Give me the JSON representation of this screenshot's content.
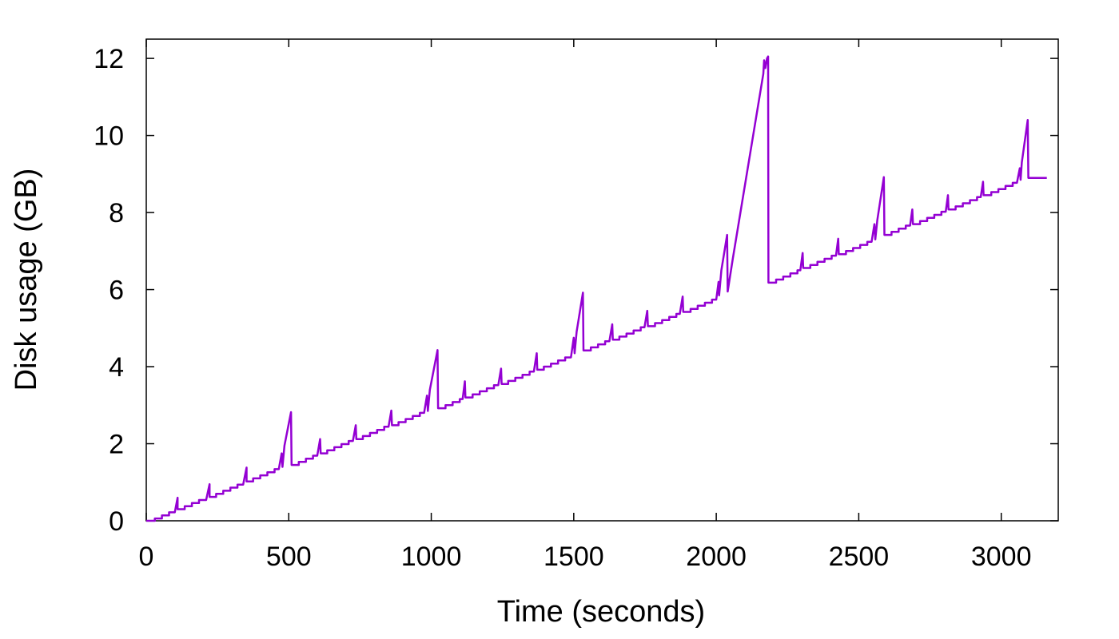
{
  "chart_data": {
    "type": "line",
    "title": "",
    "xlabel": "Time (seconds)",
    "ylabel": "Disk usage (GB)",
    "xlim": [
      0,
      3200
    ],
    "ylim": [
      0,
      12.5
    ],
    "xticks": [
      0,
      500,
      1000,
      1500,
      2000,
      2500,
      3000
    ],
    "yticks": [
      0,
      2,
      4,
      6,
      8,
      10,
      12
    ],
    "xtick_labels": [
      "0",
      "500",
      "1000",
      "1500",
      "2000",
      "2500",
      "3000"
    ],
    "ytick_labels": [
      "0",
      "2",
      "4",
      "6",
      "8",
      "10",
      "12"
    ],
    "grid": false,
    "legend": "none",
    "series": [
      {
        "color": "#9400d3",
        "points": [
          [
            0,
            0.0
          ],
          [
            30,
            0.0
          ],
          [
            30,
            0.06
          ],
          [
            55,
            0.06
          ],
          [
            55,
            0.14
          ],
          [
            80,
            0.14
          ],
          [
            80,
            0.22
          ],
          [
            100,
            0.22
          ],
          [
            110,
            0.6
          ],
          [
            110,
            0.3
          ],
          [
            135,
            0.3
          ],
          [
            135,
            0.38
          ],
          [
            160,
            0.38
          ],
          [
            160,
            0.46
          ],
          [
            185,
            0.46
          ],
          [
            185,
            0.54
          ],
          [
            210,
            0.54
          ],
          [
            222,
            0.95
          ],
          [
            222,
            0.62
          ],
          [
            245,
            0.62
          ],
          [
            245,
            0.7
          ],
          [
            270,
            0.7
          ],
          [
            270,
            0.78
          ],
          [
            295,
            0.78
          ],
          [
            295,
            0.86
          ],
          [
            320,
            0.86
          ],
          [
            320,
            0.94
          ],
          [
            340,
            0.94
          ],
          [
            352,
            1.38
          ],
          [
            352,
            1.02
          ],
          [
            375,
            1.02
          ],
          [
            375,
            1.1
          ],
          [
            400,
            1.1
          ],
          [
            400,
            1.18
          ],
          [
            425,
            1.18
          ],
          [
            425,
            1.26
          ],
          [
            450,
            1.26
          ],
          [
            450,
            1.34
          ],
          [
            465,
            1.34
          ],
          [
            475,
            1.75
          ],
          [
            478,
            1.4
          ],
          [
            485,
            1.95
          ],
          [
            508,
            2.82
          ],
          [
            510,
            1.45
          ],
          [
            535,
            1.45
          ],
          [
            535,
            1.53
          ],
          [
            560,
            1.53
          ],
          [
            560,
            1.61
          ],
          [
            585,
            1.61
          ],
          [
            585,
            1.69
          ],
          [
            600,
            1.69
          ],
          [
            610,
            2.12
          ],
          [
            612,
            1.75
          ],
          [
            635,
            1.75
          ],
          [
            635,
            1.83
          ],
          [
            660,
            1.83
          ],
          [
            660,
            1.91
          ],
          [
            685,
            1.91
          ],
          [
            685,
            1.99
          ],
          [
            710,
            1.99
          ],
          [
            710,
            2.07
          ],
          [
            725,
            2.07
          ],
          [
            735,
            2.48
          ],
          [
            737,
            2.12
          ],
          [
            760,
            2.12
          ],
          [
            760,
            2.2
          ],
          [
            785,
            2.2
          ],
          [
            785,
            2.28
          ],
          [
            810,
            2.28
          ],
          [
            810,
            2.36
          ],
          [
            835,
            2.36
          ],
          [
            835,
            2.44
          ],
          [
            850,
            2.44
          ],
          [
            860,
            2.86
          ],
          [
            862,
            2.48
          ],
          [
            885,
            2.48
          ],
          [
            885,
            2.56
          ],
          [
            910,
            2.56
          ],
          [
            910,
            2.64
          ],
          [
            935,
            2.64
          ],
          [
            935,
            2.72
          ],
          [
            960,
            2.72
          ],
          [
            960,
            2.8
          ],
          [
            975,
            2.8
          ],
          [
            985,
            3.25
          ],
          [
            988,
            2.85
          ],
          [
            995,
            3.4
          ],
          [
            1022,
            4.43
          ],
          [
            1024,
            2.92
          ],
          [
            1050,
            2.92
          ],
          [
            1050,
            3.0
          ],
          [
            1075,
            3.0
          ],
          [
            1075,
            3.08
          ],
          [
            1100,
            3.08
          ],
          [
            1100,
            3.16
          ],
          [
            1110,
            3.16
          ],
          [
            1118,
            3.62
          ],
          [
            1120,
            3.2
          ],
          [
            1145,
            3.2
          ],
          [
            1145,
            3.28
          ],
          [
            1170,
            3.28
          ],
          [
            1170,
            3.36
          ],
          [
            1195,
            3.36
          ],
          [
            1195,
            3.44
          ],
          [
            1220,
            3.44
          ],
          [
            1220,
            3.52
          ],
          [
            1235,
            3.52
          ],
          [
            1245,
            3.95
          ],
          [
            1247,
            3.55
          ],
          [
            1270,
            3.55
          ],
          [
            1270,
            3.63
          ],
          [
            1295,
            3.63
          ],
          [
            1295,
            3.71
          ],
          [
            1320,
            3.71
          ],
          [
            1320,
            3.79
          ],
          [
            1345,
            3.79
          ],
          [
            1345,
            3.87
          ],
          [
            1360,
            3.87
          ],
          [
            1370,
            4.35
          ],
          [
            1372,
            3.92
          ],
          [
            1395,
            3.92
          ],
          [
            1395,
            4.0
          ],
          [
            1420,
            4.0
          ],
          [
            1420,
            4.08
          ],
          [
            1445,
            4.08
          ],
          [
            1445,
            4.16
          ],
          [
            1470,
            4.16
          ],
          [
            1470,
            4.24
          ],
          [
            1490,
            4.24
          ],
          [
            1500,
            4.75
          ],
          [
            1503,
            4.35
          ],
          [
            1510,
            4.9
          ],
          [
            1532,
            5.92
          ],
          [
            1534,
            4.42
          ],
          [
            1560,
            4.42
          ],
          [
            1560,
            4.5
          ],
          [
            1585,
            4.5
          ],
          [
            1585,
            4.58
          ],
          [
            1610,
            4.58
          ],
          [
            1610,
            4.66
          ],
          [
            1625,
            4.66
          ],
          [
            1635,
            5.1
          ],
          [
            1637,
            4.7
          ],
          [
            1660,
            4.7
          ],
          [
            1660,
            4.78
          ],
          [
            1685,
            4.78
          ],
          [
            1685,
            4.86
          ],
          [
            1710,
            4.86
          ],
          [
            1710,
            4.94
          ],
          [
            1735,
            4.94
          ],
          [
            1735,
            5.02
          ],
          [
            1748,
            5.02
          ],
          [
            1758,
            5.45
          ],
          [
            1760,
            5.05
          ],
          [
            1785,
            5.05
          ],
          [
            1785,
            5.13
          ],
          [
            1810,
            5.13
          ],
          [
            1810,
            5.21
          ],
          [
            1835,
            5.21
          ],
          [
            1835,
            5.29
          ],
          [
            1860,
            5.29
          ],
          [
            1860,
            5.37
          ],
          [
            1872,
            5.37
          ],
          [
            1882,
            5.82
          ],
          [
            1884,
            5.42
          ],
          [
            1910,
            5.42
          ],
          [
            1910,
            5.5
          ],
          [
            1935,
            5.5
          ],
          [
            1935,
            5.58
          ],
          [
            1960,
            5.58
          ],
          [
            1960,
            5.66
          ],
          [
            1985,
            5.66
          ],
          [
            1985,
            5.74
          ],
          [
            2000,
            5.74
          ],
          [
            2008,
            6.2
          ],
          [
            2010,
            5.85
          ],
          [
            2018,
            6.5
          ],
          [
            2038,
            7.42
          ],
          [
            2040,
            5.95
          ],
          [
            2058,
            6.8
          ],
          [
            2165,
            11.6
          ],
          [
            2168,
            11.95
          ],
          [
            2172,
            11.75
          ],
          [
            2178,
            12.0
          ],
          [
            2182,
            12.05
          ],
          [
            2183,
            6.18
          ],
          [
            2210,
            6.18
          ],
          [
            2210,
            6.26
          ],
          [
            2235,
            6.26
          ],
          [
            2235,
            6.34
          ],
          [
            2260,
            6.34
          ],
          [
            2260,
            6.42
          ],
          [
            2285,
            6.42
          ],
          [
            2285,
            6.5
          ],
          [
            2295,
            6.5
          ],
          [
            2303,
            6.95
          ],
          [
            2305,
            6.56
          ],
          [
            2330,
            6.56
          ],
          [
            2330,
            6.64
          ],
          [
            2355,
            6.64
          ],
          [
            2355,
            6.72
          ],
          [
            2380,
            6.72
          ],
          [
            2380,
            6.8
          ],
          [
            2405,
            6.8
          ],
          [
            2405,
            6.88
          ],
          [
            2420,
            6.88
          ],
          [
            2428,
            7.32
          ],
          [
            2430,
            6.92
          ],
          [
            2455,
            6.92
          ],
          [
            2455,
            7.0
          ],
          [
            2480,
            7.0
          ],
          [
            2480,
            7.08
          ],
          [
            2505,
            7.08
          ],
          [
            2505,
            7.16
          ],
          [
            2530,
            7.16
          ],
          [
            2530,
            7.24
          ],
          [
            2545,
            7.24
          ],
          [
            2555,
            7.7
          ],
          [
            2558,
            7.3
          ],
          [
            2565,
            7.8
          ],
          [
            2588,
            8.92
          ],
          [
            2590,
            7.42
          ],
          [
            2615,
            7.42
          ],
          [
            2615,
            7.5
          ],
          [
            2640,
            7.5
          ],
          [
            2640,
            7.58
          ],
          [
            2665,
            7.58
          ],
          [
            2665,
            7.66
          ],
          [
            2680,
            7.66
          ],
          [
            2688,
            8.08
          ],
          [
            2690,
            7.7
          ],
          [
            2715,
            7.7
          ],
          [
            2715,
            7.78
          ],
          [
            2740,
            7.78
          ],
          [
            2740,
            7.86
          ],
          [
            2765,
            7.86
          ],
          [
            2765,
            7.94
          ],
          [
            2790,
            7.94
          ],
          [
            2790,
            8.02
          ],
          [
            2805,
            8.02
          ],
          [
            2813,
            8.45
          ],
          [
            2815,
            8.08
          ],
          [
            2840,
            8.08
          ],
          [
            2840,
            8.16
          ],
          [
            2865,
            8.16
          ],
          [
            2865,
            8.24
          ],
          [
            2890,
            8.24
          ],
          [
            2890,
            8.32
          ],
          [
            2915,
            8.32
          ],
          [
            2915,
            8.4
          ],
          [
            2928,
            8.4
          ],
          [
            2936,
            8.8
          ],
          [
            2938,
            8.45
          ],
          [
            2965,
            8.45
          ],
          [
            2965,
            8.53
          ],
          [
            2990,
            8.53
          ],
          [
            2990,
            8.61
          ],
          [
            3015,
            8.61
          ],
          [
            3015,
            8.69
          ],
          [
            3040,
            8.69
          ],
          [
            3040,
            8.77
          ],
          [
            3055,
            8.77
          ],
          [
            3065,
            9.15
          ],
          [
            3068,
            8.85
          ],
          [
            3072,
            9.3
          ],
          [
            3093,
            10.4
          ],
          [
            3095,
            8.9
          ],
          [
            3160,
            8.9
          ]
        ]
      }
    ]
  }
}
